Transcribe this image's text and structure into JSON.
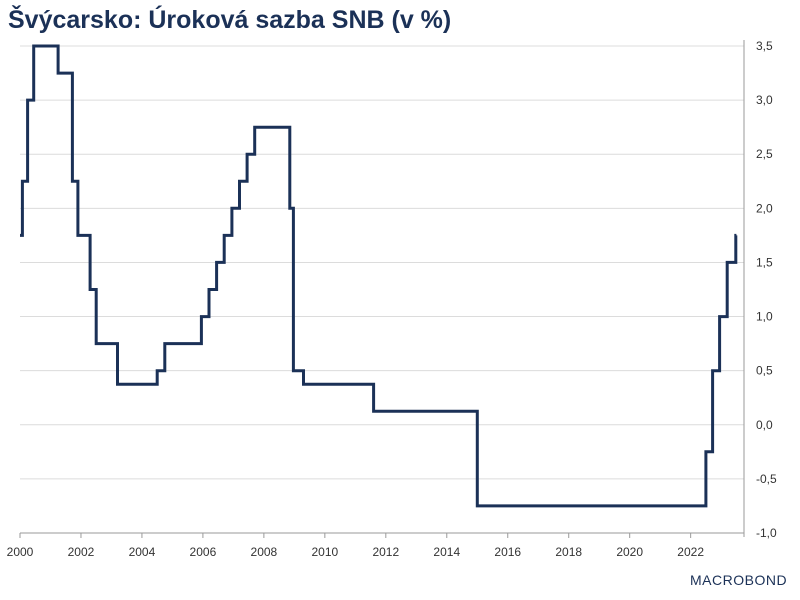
{
  "chart_data": {
    "type": "line",
    "title": "Švýcarsko: Úroková sazba SNB (v %)",
    "xlabel": "",
    "ylabel": "",
    "xlim": [
      2000.0,
      2023.75
    ],
    "ylim": [
      -1.0,
      3.5
    ],
    "grid": true,
    "color": "#1b3157",
    "x_ticks": [
      2000,
      2002,
      2004,
      2006,
      2008,
      2010,
      2012,
      2014,
      2016,
      2018,
      2020,
      2022
    ],
    "y_ticks": [
      3.5,
      3.0,
      2.5,
      2.0,
      1.5,
      1.0,
      0.5,
      0.0,
      -0.5,
      -1.0
    ],
    "y_tick_labels": [
      "3,5",
      "3,0",
      "2,5",
      "2,0",
      "1,5",
      "1,0",
      "0,5",
      "0,0",
      "-0,5",
      "-1,0"
    ],
    "series": [
      {
        "step": "post",
        "x": [
          2000.0,
          2000.08,
          2000.25,
          2000.45,
          2001.25,
          2001.72,
          2001.9,
          2002.3,
          2002.5,
          2003.2,
          2004.5,
          2004.75,
          2005.95,
          2006.2,
          2006.45,
          2006.7,
          2006.95,
          2007.2,
          2007.45,
          2007.7,
          2008.85,
          2008.97,
          2009.05,
          2009.3,
          2011.6,
          2015.0,
          2022.5,
          2022.72,
          2022.95,
          2023.2,
          2023.48,
          2023.5
        ],
        "y": [
          1.75,
          2.25,
          3.0,
          3.5,
          3.25,
          2.25,
          1.75,
          1.25,
          0.75,
          0.375,
          0.5,
          0.75,
          1.0,
          1.25,
          1.5,
          1.75,
          2.0,
          2.25,
          2.5,
          2.75,
          2.0,
          0.5,
          0.5,
          0.375,
          0.125,
          -0.75,
          -0.25,
          0.5,
          1.0,
          1.5,
          1.75,
          1.75
        ]
      }
    ]
  },
  "branding": {
    "logo_text": "MACROBOND"
  }
}
